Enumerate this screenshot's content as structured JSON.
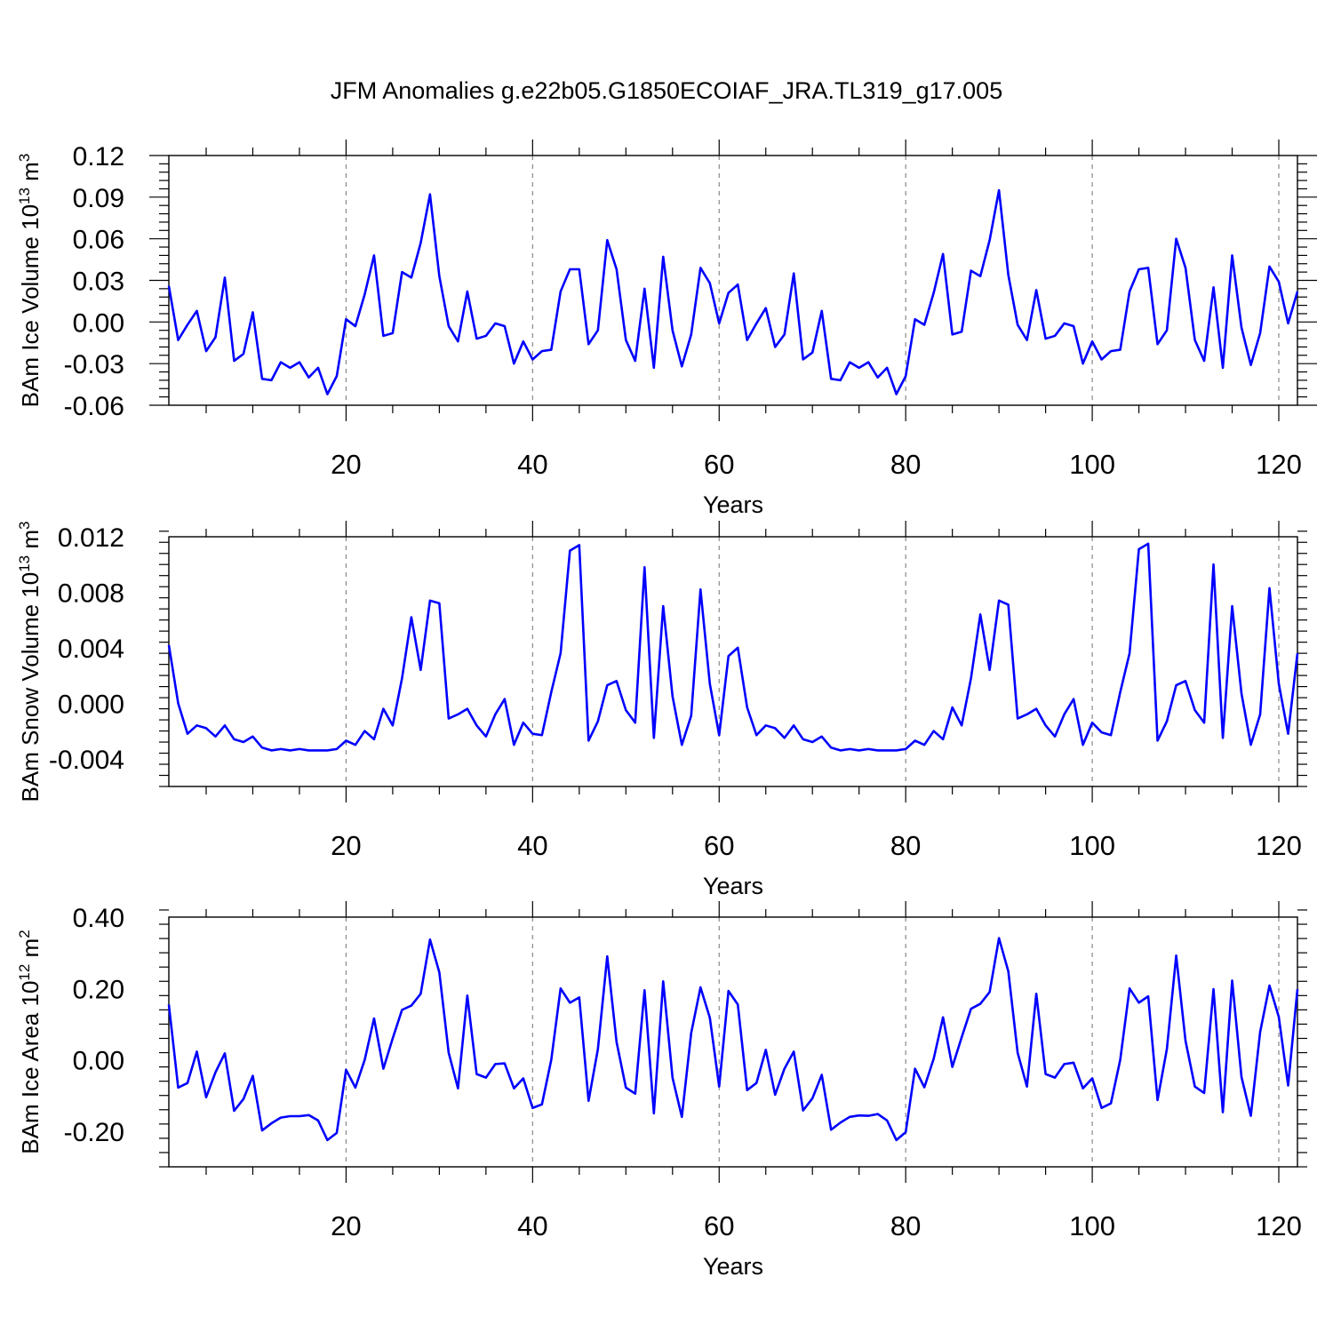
{
  "title": "JFM Anomalies g.e22b05.G1850ECOIAF_JRA.TL319_g17.005",
  "line_color": "#0000ff",
  "chart_data": [
    {
      "type": "line",
      "name": "ice-volume",
      "ylabel_main": "BAm Ice Volume 10",
      "ylabel_exp": "13",
      "ylabel_unit": " m",
      "ylabel_unit_exp": "3",
      "xlabel": "Years",
      "xlim": [
        1,
        122
      ],
      "ylim": [
        -0.06,
        0.12
      ],
      "yticks": [
        -0.06,
        -0.03,
        0.0,
        0.03,
        0.06,
        0.09,
        0.12
      ],
      "ytick_labels": [
        "-0.06",
        "-0.03",
        "0.00",
        "0.03",
        "0.06",
        "0.09",
        "0.12"
      ],
      "xticks": [
        20,
        40,
        60,
        80,
        100,
        120
      ],
      "xtick_labels": [
        "20",
        "40",
        "60",
        "80",
        "100",
        "120"
      ],
      "values": [
        0.026,
        -0.013,
        -0.002,
        0.008,
        -0.021,
        -0.011,
        0.032,
        -0.028,
        -0.023,
        0.007,
        -0.041,
        -0.042,
        -0.029,
        -0.033,
        -0.029,
        -0.04,
        -0.033,
        -0.052,
        -0.039,
        0.002,
        -0.003,
        0.02,
        0.048,
        -0.01,
        -0.008,
        0.036,
        0.032,
        0.057,
        0.092,
        0.033,
        -0.003,
        -0.014,
        0.022,
        -0.012,
        -0.01,
        -0.001,
        -0.003,
        -0.03,
        -0.014,
        -0.027,
        -0.021,
        -0.02,
        0.022,
        0.038,
        0.038,
        -0.016,
        -0.006,
        0.059,
        0.038,
        -0.013,
        -0.028,
        0.024,
        -0.033,
        0.047,
        -0.006,
        -0.032,
        -0.009,
        0.039,
        0.028,
        -0.001,
        0.021,
        0.027,
        -0.013,
        -0.001,
        0.01,
        -0.018,
        -0.009,
        0.035,
        -0.027,
        -0.022,
        0.008,
        -0.041,
        -0.042,
        -0.029,
        -0.033,
        -0.029,
        -0.04,
        -0.033,
        -0.052,
        -0.039,
        0.002,
        -0.002,
        0.021,
        0.049,
        -0.009,
        -0.007,
        0.037,
        0.033,
        0.059,
        0.095,
        0.034,
        -0.002,
        -0.013,
        0.023,
        -0.012,
        -0.01,
        -0.001,
        -0.003,
        -0.03,
        -0.014,
        -0.027,
        -0.021,
        -0.02,
        0.022,
        0.038,
        0.039,
        -0.016,
        -0.006,
        0.06,
        0.039,
        -0.013,
        -0.028,
        0.025,
        -0.033,
        0.048,
        -0.004,
        -0.031,
        -0.008,
        0.04,
        0.029,
        -0.001,
        0.022
      ]
    },
    {
      "type": "line",
      "name": "snow-volume",
      "ylabel_main": "BAm Snow Volume 10",
      "ylabel_exp": "13",
      "ylabel_unit": " m",
      "ylabel_unit_exp": "3",
      "xlabel": "Years",
      "xlim": [
        1,
        122
      ],
      "ylim": [
        -0.006,
        0.012
      ],
      "yticks": [
        -0.004,
        0.0,
        0.004,
        0.008,
        0.012
      ],
      "ytick_labels": [
        "-0.004",
        "0.000",
        "0.004",
        "0.008",
        "0.012"
      ],
      "xticks": [
        20,
        40,
        60,
        80,
        100,
        120
      ],
      "xtick_labels": [
        "20",
        "40",
        "60",
        "80",
        "100",
        "120"
      ],
      "values": [
        0.0042,
        0.0,
        -0.0022,
        -0.0016,
        -0.0018,
        -0.0024,
        -0.0016,
        -0.0026,
        -0.0028,
        -0.0024,
        -0.0032,
        -0.0034,
        -0.0033,
        -0.0034,
        -0.0033,
        -0.0034,
        -0.0034,
        -0.0034,
        -0.0033,
        -0.0027,
        -0.003,
        -0.002,
        -0.0026,
        -0.0004,
        -0.0016,
        0.0018,
        0.0062,
        0.0024,
        0.0074,
        0.0072,
        -0.0011,
        -0.0008,
        -0.0004,
        -0.0016,
        -0.0024,
        -0.0008,
        0.0003,
        -0.003,
        -0.0014,
        -0.0022,
        -0.0023,
        0.0008,
        0.0036,
        0.011,
        0.0114,
        -0.0027,
        -0.0013,
        0.0013,
        0.0016,
        -0.0005,
        -0.0014,
        0.0098,
        -0.0025,
        0.007,
        0.0005,
        -0.003,
        -0.0009,
        0.0082,
        0.0014,
        -0.0023,
        0.0034,
        0.004,
        -0.0003,
        -0.0023,
        -0.0016,
        -0.0018,
        -0.0025,
        -0.0016,
        -0.0026,
        -0.0028,
        -0.0024,
        -0.0032,
        -0.0034,
        -0.0033,
        -0.0034,
        -0.0033,
        -0.0034,
        -0.0034,
        -0.0034,
        -0.0033,
        -0.0027,
        -0.003,
        -0.002,
        -0.0026,
        -0.0003,
        -0.0016,
        0.0018,
        0.0064,
        0.0024,
        0.0074,
        0.0071,
        -0.0011,
        -0.0008,
        -0.0004,
        -0.0016,
        -0.0024,
        -0.0008,
        0.0003,
        -0.003,
        -0.0014,
        -0.0021,
        -0.0023,
        0.0008,
        0.0036,
        0.0111,
        0.0115,
        -0.0027,
        -0.0013,
        0.0013,
        0.0016,
        -0.0005,
        -0.0014,
        0.01,
        -0.0025,
        0.007,
        0.0007,
        -0.003,
        -0.0008,
        0.0083,
        0.0014,
        -0.0022,
        0.0036
      ]
    },
    {
      "type": "line",
      "name": "ice-area",
      "ylabel_main": "BAm Ice Area 10",
      "ylabel_exp": "12",
      "ylabel_unit": " m",
      "ylabel_unit_exp": "2",
      "xlabel": "Years",
      "xlim": [
        1,
        122
      ],
      "ylim": [
        -0.3,
        0.4
      ],
      "yticks": [
        -0.2,
        0.0,
        0.2,
        0.4
      ],
      "ytick_labels": [
        "-0.20",
        "0.00",
        "0.20",
        "0.40"
      ],
      "xticks": [
        20,
        40,
        60,
        80,
        100,
        120
      ],
      "xtick_labels": [
        "20",
        "40",
        "60",
        "80",
        "100",
        "120"
      ],
      "values": [
        0.155,
        -0.078,
        -0.065,
        0.023,
        -0.105,
        -0.035,
        0.018,
        -0.143,
        -0.11,
        -0.045,
        -0.198,
        -0.178,
        -0.162,
        -0.158,
        -0.158,
        -0.155,
        -0.17,
        -0.225,
        -0.205,
        -0.028,
        -0.078,
        0.0,
        0.116,
        -0.025,
        0.06,
        0.14,
        0.152,
        0.185,
        0.337,
        0.245,
        0.02,
        -0.08,
        0.18,
        -0.04,
        -0.05,
        -0.012,
        -0.01,
        -0.08,
        -0.052,
        -0.135,
        -0.125,
        0.0,
        0.2,
        0.16,
        0.175,
        -0.115,
        0.03,
        0.29,
        0.05,
        -0.078,
        -0.095,
        0.195,
        -0.15,
        0.22,
        -0.05,
        -0.16,
        0.075,
        0.203,
        0.118,
        -0.075,
        0.193,
        0.155,
        -0.085,
        -0.065,
        0.028,
        -0.098,
        -0.025,
        0.023,
        -0.142,
        -0.108,
        -0.042,
        -0.196,
        -0.176,
        -0.16,
        -0.156,
        -0.157,
        -0.152,
        -0.17,
        -0.225,
        -0.203,
        -0.025,
        -0.077,
        0.003,
        0.119,
        -0.02,
        0.063,
        0.143,
        0.157,
        0.19,
        0.341,
        0.248,
        0.02,
        -0.075,
        0.185,
        -0.04,
        -0.05,
        -0.012,
        -0.008,
        -0.08,
        -0.052,
        -0.135,
        -0.122,
        0.0,
        0.2,
        0.16,
        0.178,
        -0.113,
        0.03,
        0.292,
        0.053,
        -0.075,
        -0.093,
        0.198,
        -0.147,
        0.222,
        -0.048,
        -0.157,
        0.078,
        0.208,
        0.12,
        -0.072,
        0.198
      ]
    }
  ]
}
